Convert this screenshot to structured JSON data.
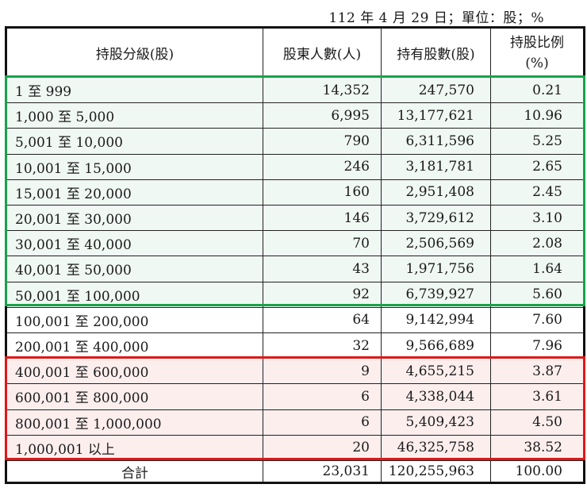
{
  "caption": "112 年 4 月 29 日；單位：股；%",
  "table": {
    "headers": {
      "tier": "持股分級(股)",
      "holders": "股東人數(人)",
      "shares": "持有股數(股)",
      "ratio_line1": "持股比例",
      "ratio_line2": "(%)"
    },
    "rows": [
      {
        "tier": "1 至 999",
        "holders": "14,352",
        "shares": "247,570",
        "ratio": "0.21"
      },
      {
        "tier": "1,000 至 5,000",
        "holders": "6,995",
        "shares": "13,177,621",
        "ratio": "10.96"
      },
      {
        "tier": "5,001 至 10,000",
        "holders": "790",
        "shares": "6,311,596",
        "ratio": "5.25"
      },
      {
        "tier": "10,001 至 15,000",
        "holders": "246",
        "shares": "3,181,781",
        "ratio": "2.65"
      },
      {
        "tier": "15,001 至 20,000",
        "holders": "160",
        "shares": "2,951,408",
        "ratio": "2.45"
      },
      {
        "tier": "20,001 至 30,000",
        "holders": "146",
        "shares": "3,729,612",
        "ratio": "3.10"
      },
      {
        "tier": "30,001 至 40,000",
        "holders": "70",
        "shares": "2,506,569",
        "ratio": "2.08"
      },
      {
        "tier": "40,001 至 50,000",
        "holders": "43",
        "shares": "1,971,756",
        "ratio": "1.64"
      },
      {
        "tier": "50,001 至 100,000",
        "holders": "92",
        "shares": "6,739,927",
        "ratio": "5.60"
      },
      {
        "tier": "100,001 至 200,000",
        "holders": "64",
        "shares": "9,142,994",
        "ratio": "7.60"
      },
      {
        "tier": "200,001 至 400,000",
        "holders": "32",
        "shares": "9,566,689",
        "ratio": "7.96"
      },
      {
        "tier": "400,001 至 600,000",
        "holders": "9",
        "shares": "4,655,215",
        "ratio": "3.87"
      },
      {
        "tier": "600,001 至 800,000",
        "holders": "6",
        "shares": "4,338,044",
        "ratio": "3.61"
      },
      {
        "tier": "800,001 至 1,000,000",
        "holders": "6",
        "shares": "5,409,423",
        "ratio": "4.50"
      },
      {
        "tier": "1,000,001 以上",
        "holders": "20",
        "shares": "46,325,758",
        "ratio": "38.52"
      }
    ],
    "total": {
      "tier": "合計",
      "holders": "23,031",
      "shares": "120,255,963",
      "ratio": "100.00"
    }
  },
  "highlights": {
    "green": {
      "color": "#17a34a",
      "fill": "#f0f8f3",
      "rows": "1-9"
    },
    "red": {
      "color": "#e01818",
      "fill": "#fdeeee",
      "rows": "12-15"
    }
  }
}
